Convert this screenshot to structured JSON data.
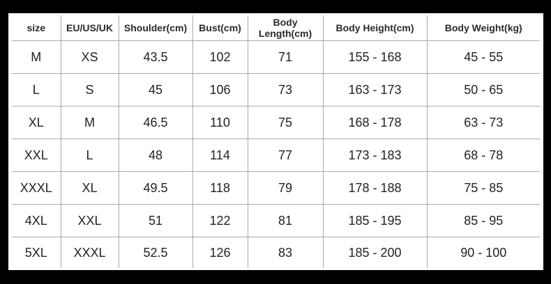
{
  "headers": [
    "size",
    "EU/US/UK",
    "Shoulder(cm)",
    "Bust(cm)",
    "Body Length(cm)",
    "Body Height(cm)",
    "Body Weight(kg)"
  ],
  "rows": [
    [
      "M",
      "XS",
      "43.5",
      "102",
      "71",
      "155 - 168",
      "45 - 55"
    ],
    [
      "L",
      "S",
      "45",
      "106",
      "73",
      "163 - 173",
      "50 - 65"
    ],
    [
      "XL",
      "M",
      "46.5",
      "110",
      "75",
      "168 - 178",
      "63 - 73"
    ],
    [
      "XXL",
      "L",
      "48",
      "114",
      "77",
      "173 - 183",
      "68 - 78"
    ],
    [
      "XXXL",
      "XL",
      "49.5",
      "118",
      "79",
      "178 - 188",
      "75 - 85"
    ],
    [
      "4XL",
      "XXL",
      "51",
      "122",
      "81",
      "185 - 195",
      "85 - 95"
    ],
    [
      "5XL",
      "XXXL",
      "52.5",
      "126",
      "83",
      "185 - 200",
      "90 - 100"
    ]
  ]
}
